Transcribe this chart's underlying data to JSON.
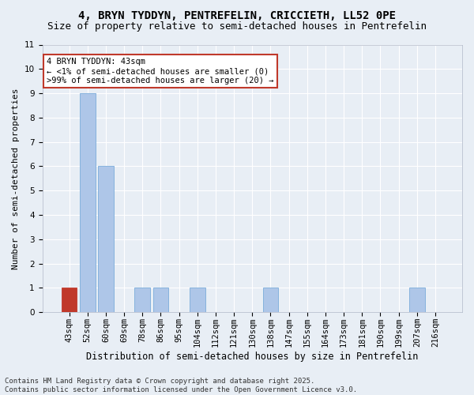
{
  "title1": "4, BRYN TYDDYN, PENTREFELIN, CRICCIETH, LL52 0PE",
  "title2": "Size of property relative to semi-detached houses in Pentrefelin",
  "xlabel": "Distribution of semi-detached houses by size in Pentrefelin",
  "ylabel": "Number of semi-detached properties",
  "categories": [
    "43sqm",
    "52sqm",
    "60sqm",
    "69sqm",
    "78sqm",
    "86sqm",
    "95sqm",
    "104sqm",
    "112sqm",
    "121sqm",
    "130sqm",
    "138sqm",
    "147sqm",
    "155sqm",
    "164sqm",
    "173sqm",
    "181sqm",
    "190sqm",
    "199sqm",
    "207sqm",
    "216sqm"
  ],
  "values": [
    1,
    9,
    6,
    0,
    1,
    1,
    0,
    1,
    0,
    0,
    0,
    1,
    0,
    0,
    0,
    0,
    0,
    0,
    0,
    1,
    0
  ],
  "bar_colors": [
    "#c0392b",
    "#aec6e8",
    "#aec6e8",
    "#aec6e8",
    "#aec6e8",
    "#aec6e8",
    "#aec6e8",
    "#aec6e8",
    "#aec6e8",
    "#aec6e8",
    "#aec6e8",
    "#aec6e8",
    "#aec6e8",
    "#aec6e8",
    "#aec6e8",
    "#aec6e8",
    "#aec6e8",
    "#aec6e8",
    "#aec6e8",
    "#aec6e8",
    "#aec6e8"
  ],
  "bar_edge_colors": [
    "#c0392b",
    "#7aacda",
    "#7aacda",
    "#7aacda",
    "#7aacda",
    "#7aacda",
    "#7aacda",
    "#7aacda",
    "#7aacda",
    "#7aacda",
    "#7aacda",
    "#7aacda",
    "#7aacda",
    "#7aacda",
    "#7aacda",
    "#7aacda",
    "#7aacda",
    "#7aacda",
    "#7aacda",
    "#7aacda",
    "#7aacda"
  ],
  "ylim": [
    0,
    11
  ],
  "yticks": [
    0,
    1,
    2,
    3,
    4,
    5,
    6,
    7,
    8,
    9,
    10,
    11
  ],
  "annotation_title": "4 BRYN TYDDYN: 43sqm",
  "annotation_line1": "← <1% of semi-detached houses are smaller (0)",
  "annotation_line2": ">99% of semi-detached houses are larger (20) →",
  "annotation_box_color": "#c0392b",
  "bg_color": "#e8eef5",
  "plot_bg_color": "#e8eef5",
  "grid_color": "#ffffff",
  "footer1": "Contains HM Land Registry data © Crown copyright and database right 2025.",
  "footer2": "Contains public sector information licensed under the Open Government Licence v3.0.",
  "title1_fontsize": 10,
  "title2_fontsize": 9,
  "xlabel_fontsize": 8.5,
  "ylabel_fontsize": 8,
  "tick_fontsize": 7.5,
  "annotation_fontsize": 7.5,
  "footer_fontsize": 6.5
}
